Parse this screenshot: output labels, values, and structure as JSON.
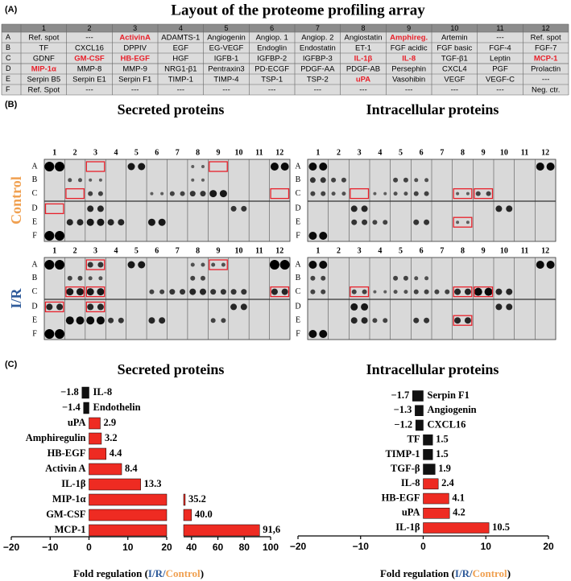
{
  "panel_a": {
    "label": "(A)",
    "title": "Layout of the proteome profiling array",
    "columns": [
      "1",
      "2",
      "3",
      "4",
      "5",
      "6",
      "7",
      "8",
      "9",
      "10",
      "11",
      "12"
    ],
    "row_labels": [
      "A",
      "B",
      "C",
      "D",
      "E",
      "F"
    ],
    "highlight_color": "#e8202a",
    "rows": [
      [
        "Ref. spot",
        "---",
        {
          "text": "ActivinA",
          "highlight": true
        },
        "ADAMTS-1",
        "Angiogenin",
        "Angiop. 1",
        "Angiop. 2",
        "Angiostatin",
        {
          "text": "Amphireg.",
          "highlight": true
        },
        "Artemin",
        "---",
        "Ref. spot"
      ],
      [
        "TF",
        "CXCL16",
        "DPPIV",
        "EGF",
        "EG-VEGF",
        "Endoglin",
        "Endostatin",
        "ET-1",
        "FGF acidic",
        "FGF basic",
        "FGF-4",
        "FGF-7"
      ],
      [
        "GDNF",
        {
          "text": "GM-CSF",
          "highlight": true
        },
        {
          "text": "HB-EGF",
          "highlight": true
        },
        "HGF",
        "IGFB-1",
        "IGFBP-2",
        "IGFBP-3",
        {
          "text": "IL-1β",
          "highlight": true
        },
        {
          "text": "IL-8",
          "highlight": true
        },
        "TGF-β1",
        "Leptin",
        {
          "text": "MCP-1",
          "highlight": true
        }
      ],
      [
        {
          "text": "MIP-1α",
          "highlight": true
        },
        "MMP-8",
        "MMP-9",
        "NRG1-β1",
        "Pentraxin3",
        "PD-ECGF",
        "PDGF-AA",
        "PDGF-AB",
        "Persephin",
        "CXCL4",
        "PGF",
        "Prolactin"
      ],
      [
        "Serpin B5",
        "Serpin E1",
        "Serpin F1",
        "TIMP-1",
        "TIMP-4",
        "TSP-1",
        "TSP-2",
        {
          "text": "uPA",
          "highlight": true
        },
        "Vasohibin",
        "VEGF",
        "VEGF-C",
        "---"
      ],
      [
        "Ref. Spot",
        "---",
        "---",
        "---",
        "---",
        "---",
        "---",
        "---",
        "---",
        "---",
        "---",
        "Neg. ctr."
      ]
    ]
  },
  "panel_b": {
    "label": "(B)",
    "titles": [
      "Secreted proteins",
      "Intracellular proteins"
    ],
    "conditions": [
      {
        "name": "Control",
        "color": "#f0a050"
      },
      {
        "name": "I/R",
        "color": "#2e5a9a"
      }
    ],
    "columns": [
      "1",
      "2",
      "3",
      "4",
      "5",
      "6",
      "7",
      "8",
      "9",
      "10",
      "11",
      "12"
    ],
    "rows": [
      "A",
      "B",
      "C",
      "D",
      "E",
      "F"
    ]
  },
  "panel_c": {
    "label": "(C)"
  },
  "chart_data": [
    {
      "type": "bar",
      "orientation": "horizontal",
      "title": "Secreted proteins",
      "categories": [
        "IL-8",
        "Endothelin",
        "uPA",
        "Amphiregulin",
        "HB-EGF",
        "Activin A",
        "IL-1β",
        "MIP-1α",
        "GM-CSF",
        "MCP-1"
      ],
      "values": [
        -1.8,
        -1.4,
        2.9,
        3.2,
        4.4,
        8.4,
        13.3,
        35.2,
        40.0,
        91.6
      ],
      "value_labels": [
        "−1.8",
        "−1.4",
        "2.9",
        "3.2",
        "4.4",
        "8.4",
        "13.3",
        "35.2",
        "40.0",
        "91,6"
      ],
      "colors": [
        "#111111",
        "#111111",
        "#ee2b22",
        "#ee2b22",
        "#ee2b22",
        "#ee2b22",
        "#ee2b22",
        "#ee2b22",
        "#ee2b22",
        "#ee2b22"
      ],
      "xlim": [
        -20,
        100
      ],
      "xbreak": [
        20,
        34
      ],
      "xticks": [
        {
          "value": -20,
          "label": "−20"
        },
        {
          "value": -10,
          "label": "−10"
        },
        0,
        10,
        20,
        40,
        60,
        80,
        100
      ],
      "xlabel": [
        {
          "text": "Fold regulation ("
        },
        {
          "text": "I/R/",
          "color": "#2e5a9a"
        },
        {
          "text": "Control",
          "color": "#f0a050"
        },
        {
          "text": ")"
        }
      ]
    },
    {
      "type": "bar",
      "orientation": "horizontal",
      "title": "Intracellular proteins",
      "categories": [
        "Serpin F1",
        "Angiogenin",
        "CXCL16",
        "TF",
        "TIMP-1",
        "TGF-β",
        "IL-8",
        "HB-EGF",
        "uPA",
        "IL-1β"
      ],
      "values": [
        -1.7,
        -1.3,
        -1.2,
        1.5,
        1.5,
        1.9,
        2.4,
        4.1,
        4.2,
        10.5
      ],
      "value_labels": [
        "−1.7",
        "−1.3",
        "−1.2",
        "1.5",
        "1.5",
        "1.9",
        "2.4",
        "4.1",
        "4.2",
        "10.5"
      ],
      "colors": [
        "#111111",
        "#111111",
        "#111111",
        "#111111",
        "#111111",
        "#111111",
        "#ee2b22",
        "#ee2b22",
        "#ee2b22",
        "#ee2b22"
      ],
      "xlim": [
        -20,
        20
      ],
      "xticks": [
        {
          "value": -20,
          "label": "−20"
        },
        {
          "value": -10,
          "label": "−10"
        },
        0,
        10,
        20
      ],
      "xlabel": [
        {
          "text": "Fold regulation ("
        },
        {
          "text": "I/R/",
          "color": "#2e5a9a"
        },
        {
          "text": "Control",
          "color": "#f0a050"
        },
        {
          "text": ")"
        }
      ]
    }
  ]
}
